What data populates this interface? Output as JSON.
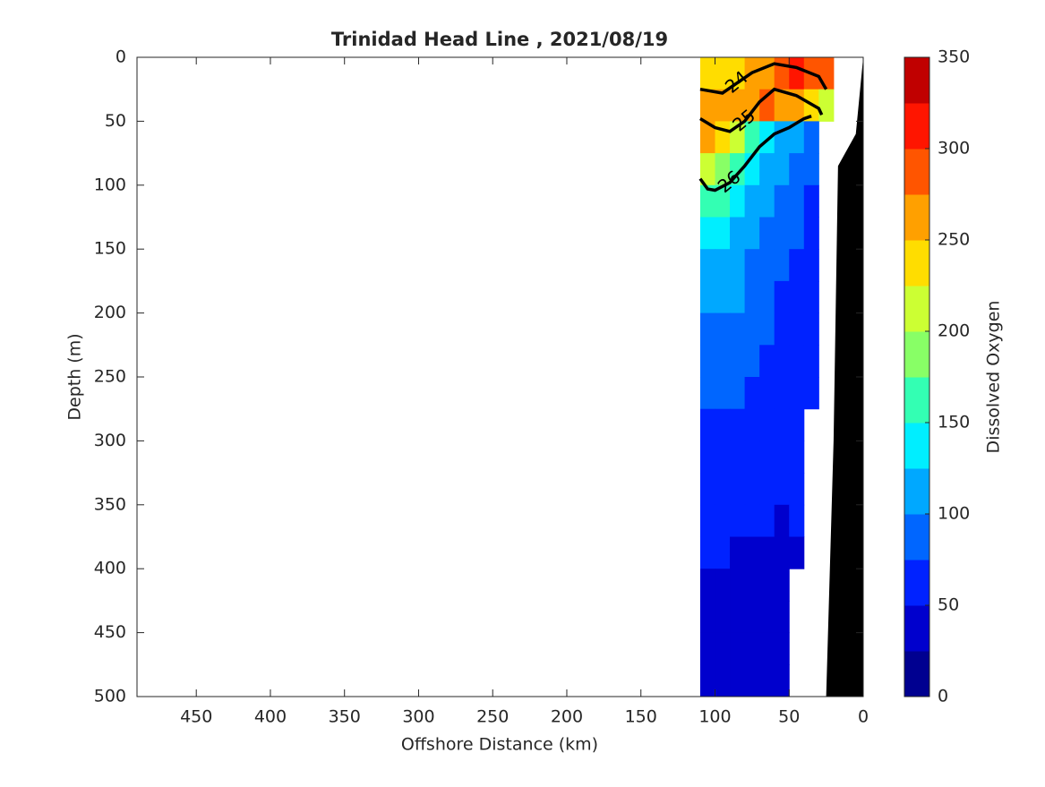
{
  "chart_data": {
    "type": "contourf",
    "title": "Trinidad Head Line , 2021/08/19",
    "x_label": "Offshore Distance (km)",
    "y_label": "Depth (m)",
    "xlim": [
      490,
      0
    ],
    "xticks": [
      450,
      400,
      350,
      300,
      250,
      200,
      150,
      100,
      50,
      0
    ],
    "ylim": [
      0,
      500
    ],
    "yticks": [
      0,
      50,
      100,
      150,
      200,
      250,
      300,
      350,
      400,
      450,
      500
    ],
    "x_edges": [
      110,
      100,
      90,
      80,
      70,
      60,
      50,
      40,
      30,
      20
    ],
    "y_edges": [
      0,
      25,
      50,
      75,
      100,
      125,
      150,
      175,
      200,
      225,
      250,
      275,
      300,
      325,
      350,
      375,
      400,
      425,
      450,
      475,
      500
    ],
    "z": [
      [
        240,
        240,
        230,
        250,
        270,
        290,
        300,
        290,
        280
      ],
      [
        260,
        250,
        260,
        270,
        280,
        270,
        250,
        230,
        200
      ],
      [
        250,
        240,
        210,
        170,
        130,
        110,
        100,
        95,
        null
      ],
      [
        200,
        190,
        160,
        130,
        110,
        100,
        90,
        85,
        null
      ],
      [
        160,
        150,
        130,
        110,
        100,
        90,
        80,
        70,
        null
      ],
      [
        130,
        125,
        120,
        105,
        95,
        80,
        75,
        70,
        null
      ],
      [
        115,
        110,
        105,
        95,
        85,
        75,
        70,
        70,
        null
      ],
      [
        110,
        105,
        100,
        90,
        75,
        70,
        70,
        65,
        null
      ],
      [
        95,
        95,
        90,
        85,
        75,
        70,
        70,
        65,
        null
      ],
      [
        90,
        90,
        85,
        80,
        70,
        65,
        65,
        65,
        null
      ],
      [
        85,
        80,
        75,
        70,
        65,
        60,
        60,
        60,
        null
      ],
      [
        70,
        65,
        65,
        60,
        60,
        60,
        55,
        null,
        null
      ],
      [
        65,
        60,
        60,
        60,
        55,
        55,
        55,
        null,
        null
      ],
      [
        60,
        60,
        55,
        55,
        50,
        55,
        55,
        null,
        null
      ],
      [
        55,
        55,
        55,
        50,
        50,
        45,
        50,
        null,
        null
      ],
      [
        50,
        50,
        45,
        45,
        45,
        45,
        48,
        null,
        null
      ],
      [
        45,
        45,
        45,
        45,
        45,
        45,
        null,
        null,
        null
      ],
      [
        45,
        45,
        45,
        45,
        45,
        45,
        null,
        null,
        null
      ],
      [
        45,
        45,
        40,
        40,
        45,
        45,
        null,
        null,
        null
      ],
      [
        45,
        45,
        40,
        40,
        45,
        45,
        null,
        null,
        null
      ]
    ],
    "bottom": {
      "color": "#000000",
      "x": [
        0,
        5,
        17,
        20,
        25,
        0
      ],
      "y": [
        0,
        60,
        85,
        300,
        500,
        500
      ]
    },
    "density_contours": [
      {
        "level": 24,
        "x": [
          110,
          95,
          85,
          75,
          60,
          45,
          30,
          25
        ],
        "y": [
          25,
          28,
          20,
          12,
          5,
          8,
          15,
          25
        ]
      },
      {
        "level": 25,
        "x": [
          110,
          100,
          90,
          80,
          70,
          60,
          45,
          30,
          28
        ],
        "y": [
          48,
          55,
          58,
          50,
          35,
          25,
          30,
          40,
          45
        ]
      },
      {
        "level": 26,
        "x": [
          110,
          105,
          100,
          90,
          80,
          70,
          60,
          50,
          40,
          35
        ],
        "y": [
          95,
          103,
          104,
          98,
          85,
          70,
          60,
          55,
          48,
          46
        ]
      }
    ],
    "colorbar": {
      "label": "Dissolved Oxygen",
      "levels": [
        0,
        25,
        50,
        75,
        100,
        125,
        150,
        175,
        200,
        225,
        250,
        275,
        300,
        325,
        350
      ],
      "colors": [
        "#000090",
        "#0000cd",
        "#0022ff",
        "#0066ff",
        "#00a8ff",
        "#00eeff",
        "#33ffb3",
        "#88ff66",
        "#ccff33",
        "#ffdd00",
        "#ffa000",
        "#ff5500",
        "#ff1500",
        "#c00000"
      ],
      "ticks": [
        0,
        50,
        100,
        150,
        200,
        250,
        300,
        350
      ]
    }
  }
}
